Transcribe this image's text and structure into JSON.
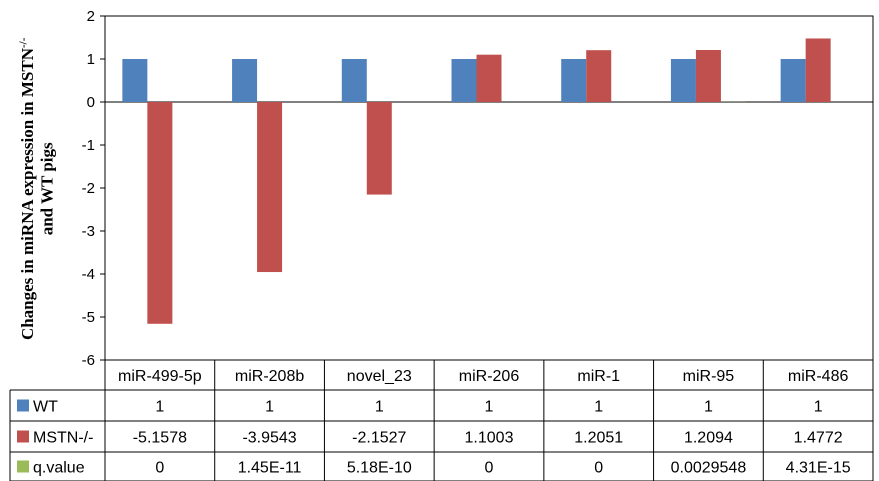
{
  "chart_data": {
    "type": "bar",
    "categories": [
      "miR-499-5p",
      "miR-208b",
      "novel_23",
      "miR-206",
      "miR-1",
      "miR-95",
      "miR-486"
    ],
    "series": [
      {
        "name": "WT",
        "color": "#4f81bd",
        "values": [
          1,
          1,
          1,
          1,
          1,
          1,
          1
        ],
        "labels": [
          "1",
          "1",
          "1",
          "1",
          "1",
          "1",
          "1"
        ]
      },
      {
        "name": "MSTN-/-",
        "color": "#c0504d",
        "values": [
          -5.1578,
          -3.9543,
          -2.1527,
          1.1003,
          1.2051,
          1.2094,
          1.4772
        ],
        "labels": [
          "-5.1578",
          "-3.9543",
          "-2.1527",
          "1.1003",
          "1.2051",
          "1.2094",
          "1.4772"
        ]
      },
      {
        "name": "q.value",
        "color": "#9bbb59",
        "values": [
          0,
          1.45e-11,
          5.18e-10,
          0,
          0,
          0.0029548,
          4.31e-15
        ],
        "labels": [
          "0",
          "1.45E-11",
          "5.18E-10",
          "0",
          "0",
          "0.0029548",
          "4.31E-15"
        ]
      }
    ],
    "ylabel_lines": [
      "Changes in miRNA expression in MSTN",
      "-/-",
      "and WT pigs"
    ],
    "ylim": [
      -6,
      2
    ],
    "yticks": [
      -6,
      -5,
      -4,
      -3,
      -2,
      -1,
      0,
      1,
      2
    ],
    "ytick_labels": [
      "-6",
      "-5",
      "-4",
      "-3",
      "-2",
      "-1",
      "0",
      "1",
      "2"
    ],
    "grid": false,
    "legend": "data-table"
  }
}
